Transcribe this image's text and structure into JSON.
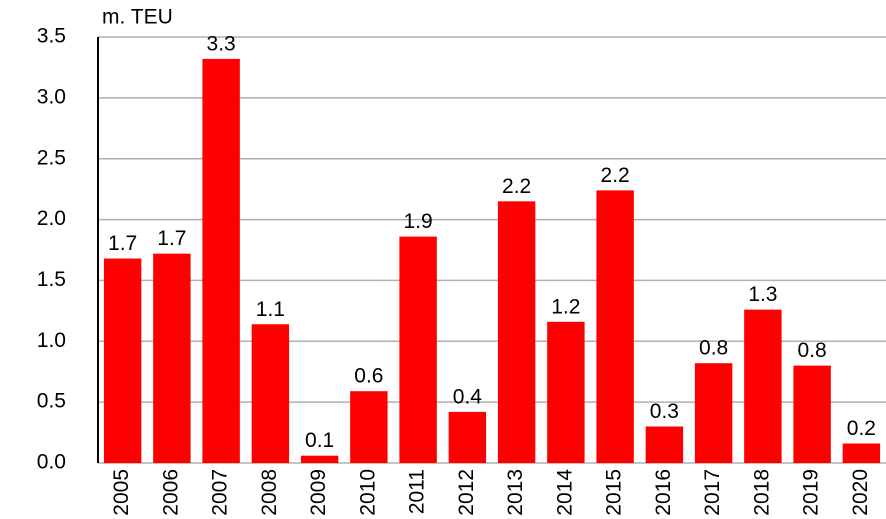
{
  "chart_data": {
    "type": "bar",
    "y_label": "m. TEU",
    "categories": [
      "2005",
      "2006",
      "2007",
      "2008",
      "2009",
      "2010",
      "2011",
      "2012",
      "2013",
      "2014",
      "2015",
      "2016",
      "2017",
      "2018",
      "2019",
      "2020"
    ],
    "values": [
      1.68,
      1.72,
      3.32,
      1.14,
      0.06,
      0.59,
      1.86,
      0.42,
      2.15,
      1.16,
      2.24,
      0.3,
      0.82,
      1.26,
      0.8,
      0.16
    ],
    "value_labels": [
      "1.7",
      "1.7",
      "3.3",
      "1.1",
      "0.1",
      "0.6",
      "1.9",
      "0.4",
      "2.2",
      "1.2",
      "2.2",
      "0.3",
      "0.8",
      "1.3",
      "0.8",
      "0.2"
    ],
    "color": "#ff0000",
    "ylim": [
      0,
      3.5
    ],
    "yticks": [
      {
        "value": 0,
        "label": "0.0"
      },
      0.5,
      {
        "value": 1,
        "label": "1.0"
      },
      1.5,
      {
        "value": 2,
        "label": "2.0"
      },
      2.5,
      {
        "value": 3,
        "label": "3.0"
      },
      3.5
    ],
    "grid": true
  }
}
